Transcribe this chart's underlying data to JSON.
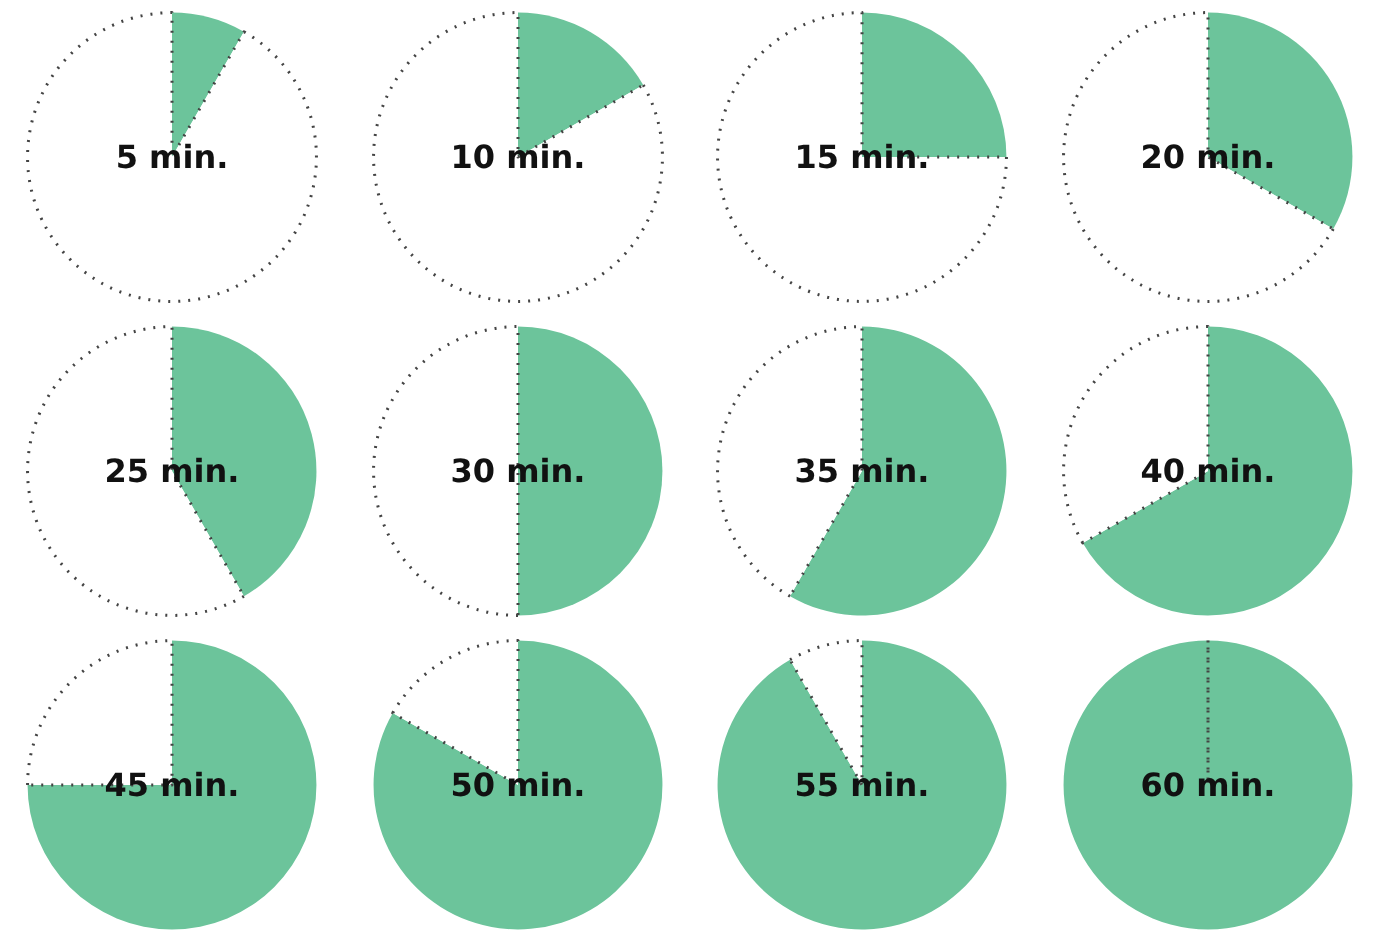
{
  "chart_data": [
    {
      "type": "pie",
      "title": "5 min.",
      "categories": [
        null,
        null
      ],
      "values": [
        8.3,
        91.7
      ],
      "colors": [
        "#6cc49b",
        "#ffffff"
      ]
    },
    {
      "type": "pie",
      "title": "10 min.",
      "categories": [
        null,
        null
      ],
      "values": [
        16.7,
        83.3
      ],
      "colors": [
        "#6cc49b",
        "#ffffff"
      ]
    },
    {
      "type": "pie",
      "title": "15 min.",
      "categories": [
        null,
        null
      ],
      "values": [
        25,
        75
      ],
      "colors": [
        "#6cc49b",
        "#ffffff"
      ]
    },
    {
      "type": "pie",
      "title": "20 min.",
      "categories": [
        null,
        null
      ],
      "values": [
        33.3,
        66.7
      ],
      "colors": [
        "#6cc49b",
        "#ffffff"
      ]
    },
    {
      "type": "pie",
      "title": "25 min.",
      "categories": [
        null,
        null
      ],
      "values": [
        41.7,
        58.3
      ],
      "colors": [
        "#6cc49b",
        "#ffffff"
      ]
    },
    {
      "type": "pie",
      "title": "30 min.",
      "categories": [
        null,
        null
      ],
      "values": [
        50,
        50
      ],
      "colors": [
        "#6cc49b",
        "#ffffff"
      ]
    },
    {
      "type": "pie",
      "title": "35 min.",
      "categories": [
        null,
        null
      ],
      "values": [
        58.3,
        41.7
      ],
      "colors": [
        "#6cc49b",
        "#ffffff"
      ]
    },
    {
      "type": "pie",
      "title": "40 min.",
      "categories": [
        null,
        null
      ],
      "values": [
        66.7,
        33.3
      ],
      "colors": [
        "#6cc49b",
        "#ffffff"
      ]
    },
    {
      "type": "pie",
      "title": "45 min.",
      "categories": [
        null,
        null
      ],
      "values": [
        75,
        25
      ],
      "colors": [
        "#6cc49b",
        "#ffffff"
      ]
    },
    {
      "type": "pie",
      "title": "50 min.",
      "categories": [
        null,
        null
      ],
      "values": [
        83.3,
        16.7
      ],
      "colors": [
        "#6cc49b",
        "#ffffff"
      ]
    },
    {
      "type": "pie",
      "title": "55 min.",
      "categories": [
        null,
        null
      ],
      "values": [
        91.7,
        8.3
      ],
      "colors": [
        "#6cc49b",
        "#ffffff"
      ]
    },
    {
      "type": "pie",
      "title": "60 min.",
      "categories": [
        null,
        null
      ],
      "values": [
        100,
        0
      ],
      "colors": [
        "#6cc49b",
        "#ffffff"
      ]
    }
  ]
}
